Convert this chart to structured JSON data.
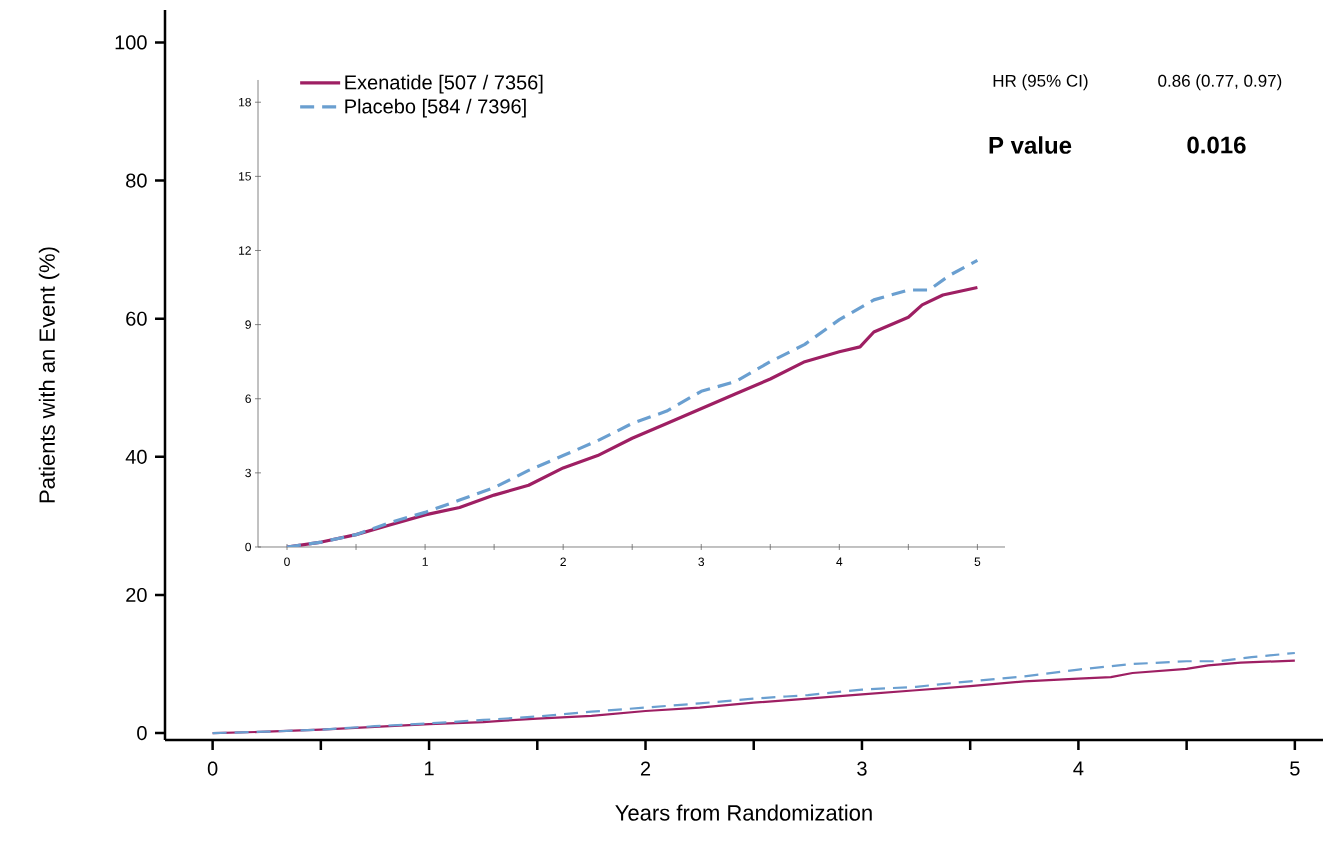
{
  "chart_data": [
    {
      "type": "line",
      "xlabel": "Years from Randomization",
      "ylabel": "Patients with an Event (%)",
      "annotations": [
        "HR (95% CI)",
        "0.86 (0.77, 0.97)",
        "P value",
        "0.016"
      ],
      "xlim": [
        -0.22,
        5.13
      ],
      "ylim": [
        -1,
        104.7
      ],
      "xticks": [
        0,
        {
          "value": 0.5,
          "label": null
        },
        1,
        {
          "value": 1.5,
          "label": null
        },
        2,
        {
          "value": 2.5,
          "label": null
        },
        3,
        {
          "value": 3.5,
          "label": null
        },
        4,
        {
          "value": 4.5,
          "label": null
        },
        5
      ],
      "yticks": [
        0,
        20,
        40,
        60,
        80,
        100
      ],
      "series": [
        {
          "color": "#9e1f63",
          "line_style": "solid",
          "x": [
            0,
            0.25,
            0.5,
            0.75,
            1,
            1.25,
            1.35,
            1.5,
            1.75,
            2,
            2.25,
            2.5,
            2.75,
            3,
            3.25,
            3.5,
            3.75,
            4,
            4.15,
            4.25,
            4.5,
            4.6,
            4.75,
            5
          ],
          "values": [
            0,
            0.2,
            0.5,
            0.9,
            1.3,
            1.6,
            1.8,
            2.1,
            2.5,
            3.2,
            3.7,
            4.4,
            5.0,
            5.6,
            6.2,
            6.8,
            7.5,
            7.9,
            8.1,
            8.7,
            9.3,
            9.8,
            10.2,
            10.5
          ]
        },
        {
          "color": "#6a9fd0",
          "line_style": "dashed",
          "x": [
            0,
            0.25,
            0.5,
            0.75,
            1,
            1.25,
            1.5,
            1.75,
            2,
            2.25,
            2.5,
            2.65,
            2.75,
            3,
            3.25,
            3.5,
            3.75,
            4,
            4.25,
            4.5,
            4.65,
            4.8,
            5
          ],
          "values": [
            0,
            0.2,
            0.5,
            1.0,
            1.4,
            1.9,
            2.4,
            3.1,
            3.7,
            4.3,
            5.0,
            5.3,
            5.5,
            6.3,
            6.7,
            7.5,
            8.2,
            9.2,
            10.0,
            10.4,
            10.4,
            11.0,
            11.6
          ]
        }
      ]
    },
    {
      "type": "line",
      "legend": "top left",
      "xlim": [
        -0.21,
        5.2
      ],
      "ylim": [
        0,
        18.9
      ],
      "xticks": [
        0,
        {
          "value": 0.5,
          "label": null
        },
        1,
        {
          "value": 1.5,
          "label": null
        },
        2,
        {
          "value": 2.5,
          "label": null
        },
        3,
        {
          "value": 3.5,
          "label": null
        },
        4,
        {
          "value": 4.5,
          "label": null
        },
        5
      ],
      "yticks": [
        0,
        3,
        6,
        9,
        12,
        15,
        18
      ],
      "series": [
        {
          "name": "Exenatide [507 / 7356]",
          "color": "#9e1f63",
          "line_style": "solid",
          "x": [
            0,
            0.25,
            0.5,
            0.75,
            1,
            1.25,
            1.35,
            1.5,
            1.75,
            2,
            2.25,
            2.5,
            2.75,
            3,
            3.25,
            3.5,
            3.75,
            4,
            4.15,
            4.25,
            4.5,
            4.6,
            4.75,
            5
          ],
          "values": [
            0,
            0.2,
            0.5,
            0.9,
            1.3,
            1.6,
            1.8,
            2.1,
            2.5,
            3.2,
            3.7,
            4.4,
            5.0,
            5.6,
            6.2,
            6.8,
            7.5,
            7.9,
            8.1,
            8.7,
            9.3,
            9.8,
            10.2,
            10.5
          ]
        },
        {
          "name": "Placebo [584 / 7396]",
          "color": "#6a9fd0",
          "line_style": "dashed",
          "x": [
            0,
            0.25,
            0.5,
            0.75,
            1,
            1.25,
            1.5,
            1.75,
            2,
            2.25,
            2.5,
            2.65,
            2.75,
            3,
            3.25,
            3.5,
            3.75,
            4,
            4.25,
            4.5,
            4.65,
            4.8,
            5
          ],
          "values": [
            0,
            0.2,
            0.5,
            1.0,
            1.4,
            1.9,
            2.4,
            3.1,
            3.7,
            4.3,
            5.0,
            5.3,
            5.5,
            6.3,
            6.7,
            7.5,
            8.2,
            9.2,
            10.0,
            10.4,
            10.4,
            11.0,
            11.6
          ]
        }
      ]
    }
  ]
}
